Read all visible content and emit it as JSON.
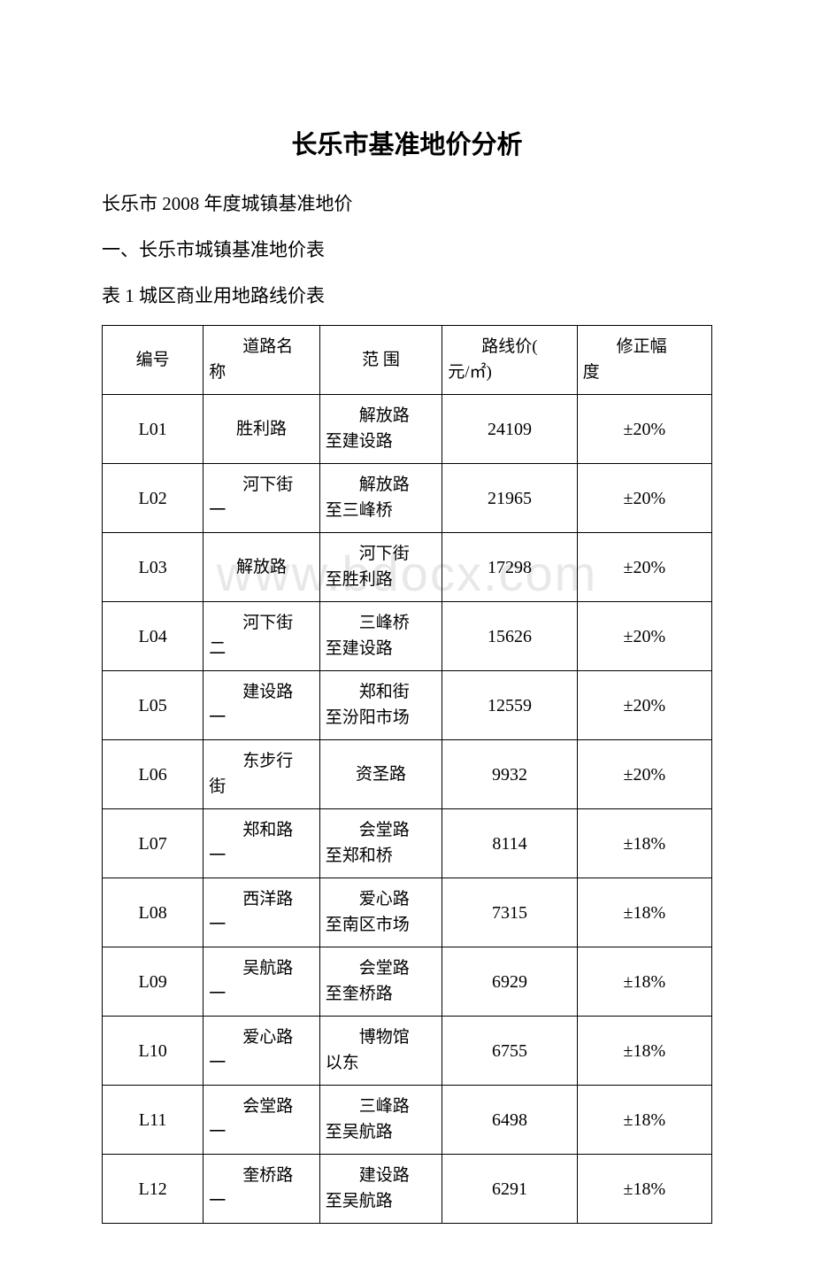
{
  "watermark_text": "www.bdocx.com",
  "main_title": "长乐市基准地价分析",
  "subtitle1": "长乐市 2008 年度城镇基准地价",
  "subtitle2": "一、长乐市城镇基准地价表",
  "subtitle3": "表 1 城区商业用地路线价表",
  "table": {
    "type": "table",
    "background_color": "#ffffff",
    "border_color": "#000000",
    "font_size_pt": 14,
    "header_font_size_pt": 14,
    "columns": [
      {
        "key": "id",
        "label": "编号",
        "width_pct": 16.5,
        "align": "center"
      },
      {
        "key": "name",
        "label_line1": "道路名",
        "label_line2": "称",
        "width_pct": 19,
        "align": "left"
      },
      {
        "key": "range",
        "label": "范 围",
        "width_pct": 20,
        "align": "left"
      },
      {
        "key": "price",
        "label_line1": "路线价(",
        "label_line2": "元/㎡)",
        "width_pct": 22,
        "align": "center"
      },
      {
        "key": "adjust",
        "label_line1": "修正幅",
        "label_line2": "度",
        "width_pct": 22,
        "align": "center"
      }
    ],
    "rows": [
      {
        "id": "L01",
        "name": "胜利路",
        "name_suffix": "",
        "range_l1": "解放路",
        "range_l2": "至建设路",
        "price": "24109",
        "adjust": "±20%"
      },
      {
        "id": "L02",
        "name": "河下街",
        "name_suffix": "一",
        "range_l1": "解放路",
        "range_l2": "至三峰桥",
        "price": "21965",
        "adjust": "±20%"
      },
      {
        "id": "L03",
        "name": "解放路",
        "name_suffix": "",
        "range_l1": "河下街",
        "range_l2": "至胜利路",
        "price": "17298",
        "adjust": "±20%"
      },
      {
        "id": "L04",
        "name": "河下街",
        "name_suffix": "二",
        "range_l1": "三峰桥",
        "range_l2": "至建设路",
        "price": "15626",
        "adjust": "±20%"
      },
      {
        "id": "L05",
        "name": "建设路",
        "name_suffix": "一",
        "range_l1": "郑和街",
        "range_l2": "至汾阳市场",
        "price": "12559",
        "adjust": "±20%"
      },
      {
        "id": "L06",
        "name": "东步行",
        "name_suffix": "街",
        "range_l1": "资圣路",
        "range_l2": "",
        "price": "9932",
        "adjust": "±20%"
      },
      {
        "id": "L07",
        "name": "郑和路",
        "name_suffix": "一",
        "range_l1": "会堂路",
        "range_l2": "至郑和桥",
        "price": "8114",
        "adjust": "±18%"
      },
      {
        "id": "L08",
        "name": "西洋路",
        "name_suffix": "一",
        "range_l1": "爱心路",
        "range_l2": "至南区市场",
        "price": "7315",
        "adjust": "±18%"
      },
      {
        "id": "L09",
        "name": "吴航路",
        "name_suffix": "一",
        "range_l1": "会堂路",
        "range_l2": "至奎桥路",
        "price": "6929",
        "adjust": "±18%"
      },
      {
        "id": "L10",
        "name": "爱心路",
        "name_suffix": "一",
        "range_l1": "博物馆",
        "range_l2": "以东",
        "price": "6755",
        "adjust": "±18%"
      },
      {
        "id": "L11",
        "name": "会堂路",
        "name_suffix": "一",
        "range_l1": "三峰路",
        "range_l2": "至吴航路",
        "price": "6498",
        "adjust": "±18%"
      },
      {
        "id": "L12",
        "name": "奎桥路",
        "name_suffix": "一",
        "range_l1": "建设路",
        "range_l2": "至吴航路",
        "price": "6291",
        "adjust": "±18%"
      }
    ]
  }
}
